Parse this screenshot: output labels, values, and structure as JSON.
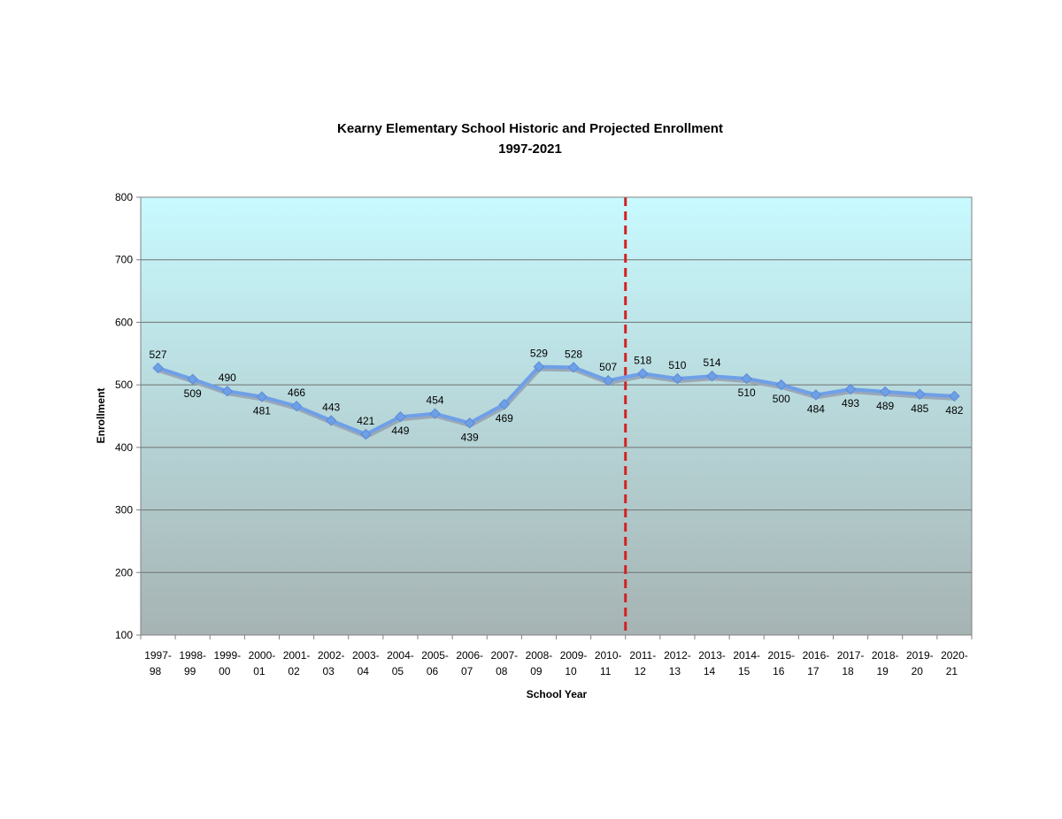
{
  "chart_data": {
    "type": "line",
    "title": "Kearny Elementary School Historic and Projected Enrollment",
    "subtitle": "1997-2021",
    "xlabel": "School Year",
    "ylabel": "Enrollment",
    "ylim": [
      100,
      800
    ],
    "yticks": [
      "100",
      "200",
      "300",
      "400",
      "500",
      "600",
      "700",
      "800"
    ],
    "grid": true,
    "legend": "none",
    "categories": [
      [
        "1997-",
        "98"
      ],
      [
        "1998-",
        "99"
      ],
      [
        "1999-",
        "00"
      ],
      [
        "2000-",
        "01"
      ],
      [
        "2001-",
        "02"
      ],
      [
        "2002-",
        "03"
      ],
      [
        "2003-",
        "04"
      ],
      [
        "2004-",
        "05"
      ],
      [
        "2005-",
        "06"
      ],
      [
        "2006-",
        "07"
      ],
      [
        "2007-",
        "08"
      ],
      [
        "2008-",
        "09"
      ],
      [
        "2009-",
        "10"
      ],
      [
        "2010-",
        "11"
      ],
      [
        "2011-",
        "12"
      ],
      [
        "2012-",
        "13"
      ],
      [
        "2013-",
        "14"
      ],
      [
        "2014-",
        "15"
      ],
      [
        "2015-",
        "16"
      ],
      [
        "2016-",
        "17"
      ],
      [
        "2017-",
        "18"
      ],
      [
        "2018-",
        "19"
      ],
      [
        "2019-",
        "20"
      ],
      [
        "2020-",
        "21"
      ]
    ],
    "values": [
      527,
      509,
      490,
      481,
      466,
      443,
      421,
      449,
      454,
      439,
      469,
      529,
      528,
      507,
      518,
      510,
      514,
      510,
      500,
      484,
      493,
      489,
      485,
      482
    ],
    "label_position": [
      "above",
      "below",
      "above",
      "below",
      "above",
      "above",
      "above",
      "below",
      "above",
      "below",
      "below",
      "above",
      "above",
      "above",
      "above",
      "above",
      "above",
      "below",
      "below",
      "below",
      "below",
      "below",
      "below",
      "below"
    ],
    "divider_after_category": 13,
    "colors": {
      "line": "#6ea0e8",
      "line_shadow": "#9aa8b8",
      "marker": "#6ea0e8",
      "divider": "#d42020",
      "plot_top": "#c8faff",
      "plot_bottom": "#a6b3b3",
      "gridline": "#707070"
    }
  }
}
